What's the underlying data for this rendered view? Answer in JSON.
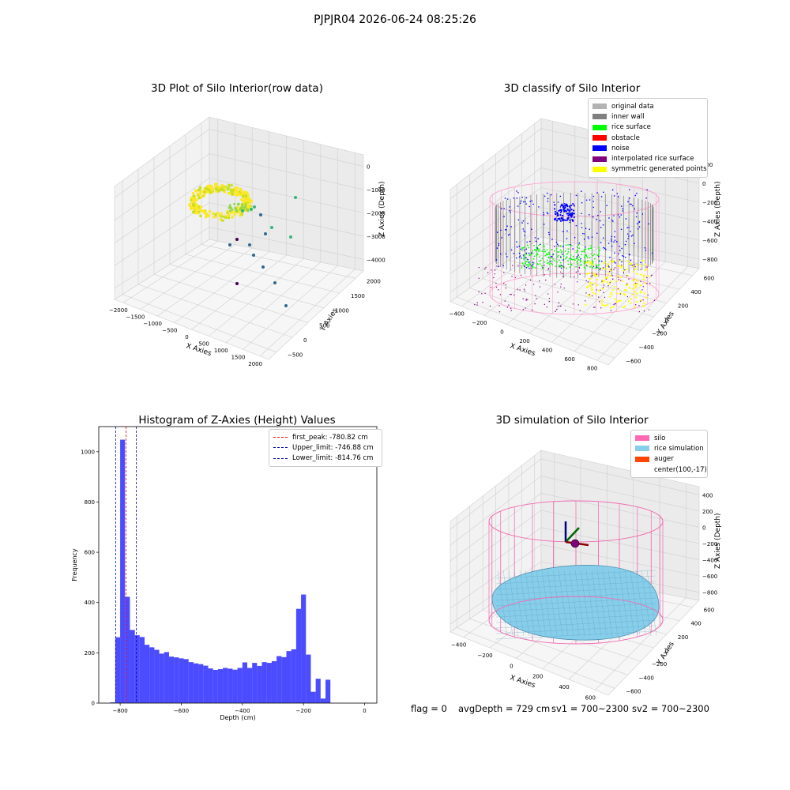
{
  "suptitle": "PJPJR04 2026-06-24 08:25:26",
  "colors": {
    "raw_gradient": [
      "#440154",
      "#31688e",
      "#35b779",
      "#fde725"
    ],
    "original": "#b3b3b3",
    "inner_wall": "#808080",
    "rice": "#00ff00",
    "obstacle": "#ff0000",
    "noise": "#0000ff",
    "interp": "#800080",
    "sym": "#ffff00",
    "silo": "#ff69b4",
    "rice_sim": "#87ceeb",
    "auger": "#ff4500",
    "hist_bar": "#0000ff",
    "peak_line": "#ff0000",
    "limit_line": "#0000aa"
  },
  "chart_data": [
    {
      "type": "scatter",
      "projection": "3d",
      "title": "3D Plot of Silo Interior(row data)",
      "xlabel": "X Axies",
      "ylabel": "Y Axies",
      "zlabel": "Z Axies (Depth)",
      "x_ticks": [
        "−2000",
        "−1500",
        "−1000",
        "−500",
        "0",
        "500",
        "1000",
        "1500",
        "2000"
      ],
      "y_ticks": [
        "−500",
        "0",
        "500",
        "1000",
        "1500",
        "2000"
      ],
      "z_ticks": [
        "0",
        "−1000",
        "−2000",
        "−3000",
        "−4000"
      ],
      "xlim": [
        -2000,
        2000
      ],
      "ylim": [
        -500,
        2000
      ],
      "zlim": [
        -4000,
        0
      ],
      "grid": true
    },
    {
      "type": "scatter",
      "projection": "3d",
      "title": "3D classify of Silo Interior",
      "xlabel": "X Axies",
      "ylabel": "Y Axies",
      "zlabel": "Z Axies (Depth)",
      "x_ticks": [
        "−400",
        "−200",
        "0",
        "200",
        "400",
        "600",
        "800"
      ],
      "y_ticks": [
        "−600",
        "−400",
        "−200",
        "0",
        "200",
        "400",
        "600"
      ],
      "z_ticks": [
        "200",
        "0",
        "−200",
        "−400",
        "−600",
        "−800"
      ],
      "legend": [
        "original data",
        "inner wall",
        "rice surface",
        "obstacle",
        "noise",
        "interpolated rice surface",
        "symmetric generated points"
      ],
      "legend_loc": "upper right",
      "grid": true
    },
    {
      "type": "bar",
      "title": "Histogram of Z-Axies (Height) Values",
      "xlabel": "Depth (cm)",
      "ylabel": "Frequency",
      "xlim": [
        -870,
        40
      ],
      "ylim": [
        0,
        1100
      ],
      "x_ticks": [
        -800,
        -600,
        -400,
        -200,
        0
      ],
      "x_tick_labels": [
        "−800",
        "−600",
        "−400",
        "−200",
        "0"
      ],
      "y_ticks": [
        0,
        200,
        400,
        600,
        800,
        1000
      ],
      "bin_width": 16,
      "bin_start": -832,
      "values": [
        3,
        262,
        1048,
        423,
        291,
        270,
        263,
        232,
        222,
        212,
        197,
        203,
        185,
        182,
        178,
        175,
        163,
        158,
        155,
        149,
        138,
        132,
        135,
        140,
        137,
        133,
        140,
        162,
        140,
        160,
        148,
        163,
        160,
        167,
        187,
        183,
        207,
        214,
        375,
        432,
        193,
        45,
        97,
        18,
        93
      ],
      "lines": [
        {
          "label": "first_peak: -780.82 cm",
          "x": -780.82,
          "style": "dashed",
          "color": "#ff0000"
        },
        {
          "label": "Upper_limit: -746.88 cm",
          "x": -746.88,
          "style": "dashed",
          "color": "#0000aa"
        },
        {
          "label": "Lower_limit: -814.76 cm",
          "x": -814.76,
          "style": "dashed",
          "color": "#0000aa"
        }
      ],
      "legend_loc": "upper right"
    },
    {
      "type": "scatter",
      "projection": "3d",
      "title": "3D simulation of Silo Interior",
      "xlabel": "X Axies",
      "ylabel": "Y Axies",
      "zlabel": "Z Axies (Depth)",
      "x_ticks": [
        "−400",
        "−200",
        "0",
        "200",
        "400",
        "600"
      ],
      "y_ticks": [
        "−600",
        "−400",
        "−200",
        "0",
        "200",
        "400",
        "600"
      ],
      "z_ticks": [
        "400",
        "200",
        "0",
        "−200",
        "−400",
        "−600",
        "−800"
      ],
      "legend": [
        "silo",
        "rice simulation",
        "auger",
        "center(100,-17)"
      ],
      "legend_loc": "upper right",
      "grid": true
    }
  ],
  "status": {
    "flag": "flag = 0",
    "avg_depth": "avgDepth = 729 cm",
    "sv1": "sv1 = 700~2300",
    "sv2": "sv2 = 700~2300"
  }
}
